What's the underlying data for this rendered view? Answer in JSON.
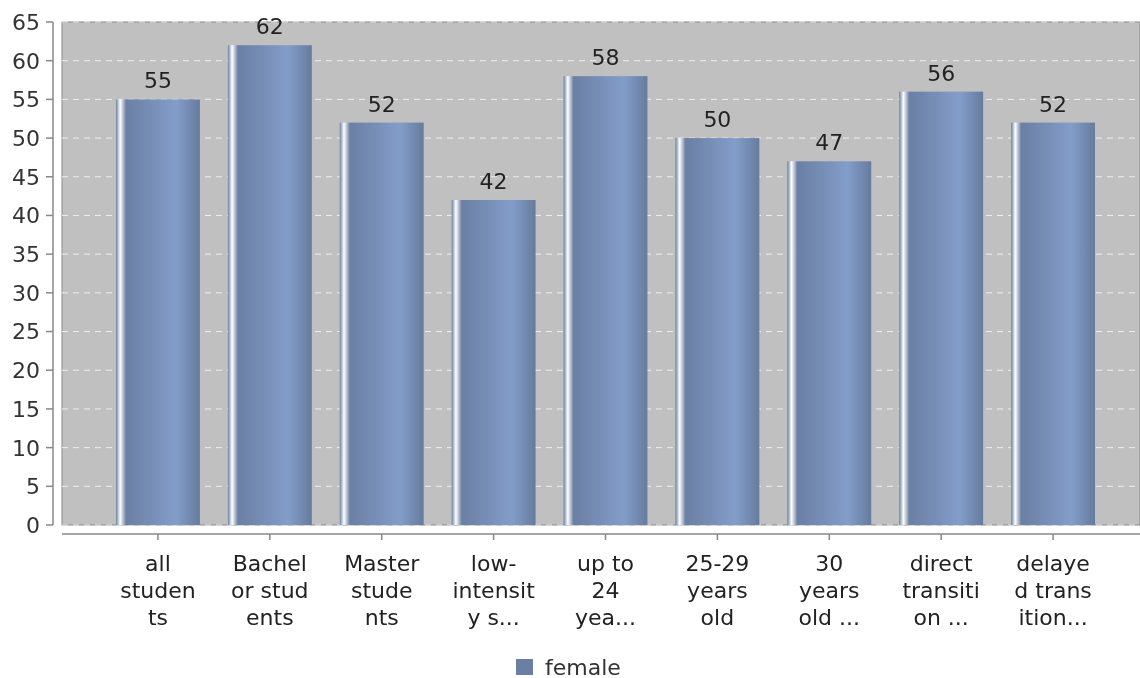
{
  "chart_data": {
    "type": "bar",
    "categories": [
      "all\nstuden\nts",
      "Bachel\nor stud\nents",
      "Master\nstude\nnts",
      "low-\nintensit\ny s...",
      "up to\n24\nyea...",
      "25-29\nyears\nold",
      "30\nyears\nold ...",
      "direct\ntransiti\non ...",
      "delaye\nd trans\nition..."
    ],
    "series": [
      {
        "name": "female",
        "color": "#6a7fa3",
        "values": [
          55,
          62,
          52,
          42,
          58,
          50,
          47,
          56,
          52
        ]
      }
    ],
    "ylim": [
      0,
      65
    ],
    "yticks": [
      0,
      5,
      10,
      15,
      20,
      25,
      30,
      35,
      40,
      45,
      50,
      55,
      60,
      65
    ],
    "grid": "y",
    "legend": "bottom",
    "data_labels": true
  }
}
